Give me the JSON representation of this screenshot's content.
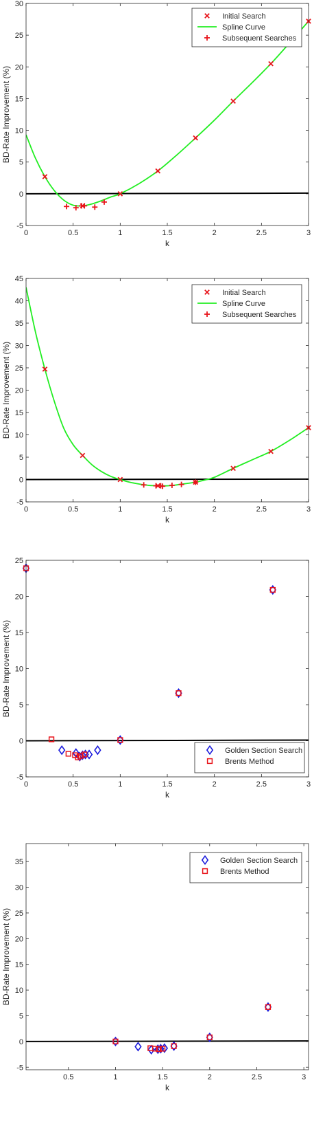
{
  "chart_data": [
    {
      "type": "line",
      "xlabel": "k",
      "ylabel": "BD-Rate Improvement (%)",
      "xlim": [
        0,
        3
      ],
      "ylim": [
        -5,
        30
      ],
      "xticks": [
        0,
        0.5,
        1,
        1.5,
        2,
        2.5,
        3
      ],
      "xtick_labels": [
        "0",
        "0.5",
        "1",
        "1.5",
        "2",
        "2.5",
        "3"
      ],
      "yticks": [
        -5,
        0,
        5,
        10,
        15,
        20,
        25,
        30
      ],
      "ytick_labels": [
        "-5",
        "0",
        "5",
        "10",
        "15",
        "20",
        "25",
        "30"
      ],
      "legend_position": "top-right",
      "legend": [
        "Initial Search",
        "Spline Curve",
        "Subsequent Searches"
      ],
      "zero_line": [
        [
          0,
          0
        ],
        [
          3,
          0.1
        ]
      ],
      "series": [
        {
          "name": "Initial Search",
          "marker": "x",
          "color": "#e8141b",
          "x": [
            0.2,
            0.6,
            1.0,
            1.4,
            1.8,
            2.2,
            2.6,
            3.0
          ],
          "y": [
            2.7,
            -1.9,
            0.0,
            3.6,
            8.8,
            14.6,
            20.5,
            27.2
          ]
        },
        {
          "name": "Spline Curve",
          "style": "line",
          "color": "#22ee22",
          "x": [
            0,
            0.1,
            0.2,
            0.3,
            0.4,
            0.5,
            0.6,
            0.7,
            0.8,
            0.9,
            1.0,
            1.2,
            1.4,
            1.6,
            1.8,
            2.0,
            2.2,
            2.4,
            2.6,
            2.8,
            3.0
          ],
          "y": [
            9.3,
            5.6,
            2.7,
            0.5,
            -1.0,
            -1.8,
            -1.9,
            -1.6,
            -1.1,
            -0.5,
            0.0,
            1.6,
            3.6,
            6.1,
            8.8,
            11.6,
            14.6,
            17.5,
            20.5,
            23.8,
            27.2
          ]
        },
        {
          "name": "Subsequent Searches",
          "marker": "+",
          "color": "#e8141b",
          "x": [
            0.43,
            0.53,
            0.59,
            0.62,
            0.73,
            0.83
          ],
          "y": [
            -2.0,
            -2.2,
            -1.9,
            -1.9,
            -2.1,
            -1.3
          ]
        }
      ]
    },
    {
      "type": "line",
      "xlabel": "k",
      "ylabel": "BD-Rate Improvement (%)",
      "xlim": [
        0,
        3
      ],
      "ylim": [
        -5,
        45
      ],
      "xticks": [
        0,
        0.5,
        1,
        1.5,
        2,
        2.5,
        3
      ],
      "xtick_labels": [
        "0",
        "0.5",
        "1",
        "1.5",
        "2",
        "2.5",
        "3"
      ],
      "yticks": [
        -5,
        0,
        5,
        10,
        15,
        20,
        25,
        30,
        35,
        40,
        45
      ],
      "ytick_labels": [
        "-5",
        "0",
        "5",
        "10",
        "15",
        "20",
        "25",
        "30",
        "35",
        "40",
        "45"
      ],
      "legend_position": "top-right",
      "legend": [
        "Initial Search",
        "Spline Curve",
        "Subsequent Searches"
      ],
      "zero_line": [
        [
          0,
          0
        ],
        [
          3,
          0.1
        ]
      ],
      "series": [
        {
          "name": "Initial Search",
          "marker": "x",
          "color": "#e8141b",
          "x": [
            0.2,
            0.6,
            1.0,
            1.4,
            1.8,
            2.2,
            2.6,
            3.0
          ],
          "y": [
            24.7,
            5.4,
            0.0,
            -1.4,
            -0.6,
            2.5,
            6.3,
            11.6
          ]
        },
        {
          "name": "Spline Curve",
          "style": "line",
          "color": "#22ee22",
          "x": [
            0,
            0.1,
            0.2,
            0.3,
            0.4,
            0.5,
            0.6,
            0.7,
            0.8,
            0.9,
            1.0,
            1.1,
            1.2,
            1.3,
            1.4,
            1.5,
            1.6,
            1.7,
            1.8,
            1.9,
            2.0,
            2.2,
            2.4,
            2.6,
            2.8,
            3.0
          ],
          "y": [
            43.0,
            33.0,
            24.7,
            17.5,
            11.5,
            7.8,
            5.4,
            3.3,
            1.8,
            0.7,
            0.0,
            -0.6,
            -1.0,
            -1.3,
            -1.4,
            -1.4,
            -1.2,
            -0.9,
            -0.6,
            -0.1,
            0.5,
            2.5,
            4.4,
            6.3,
            8.8,
            11.6
          ]
        },
        {
          "name": "Subsequent Searches",
          "marker": "+",
          "color": "#e8141b",
          "x": [
            1.25,
            1.38,
            1.43,
            1.45,
            1.55,
            1.65,
            1.8
          ],
          "y": [
            -1.2,
            -1.4,
            -1.4,
            -1.5,
            -1.3,
            -1.1,
            -0.6
          ]
        }
      ]
    },
    {
      "type": "scatter",
      "xlabel": "k",
      "ylabel": "BD-Rate Improvement (%)",
      "xlim": [
        0,
        3
      ],
      "ylim": [
        -5,
        25
      ],
      "xticks": [
        0,
        0.5,
        1,
        1.5,
        2,
        2.5,
        3
      ],
      "xtick_labels": [
        "0",
        "0.5",
        "1",
        "1.5",
        "2",
        "2.5",
        "3"
      ],
      "yticks": [
        -5,
        0,
        5,
        10,
        15,
        20,
        25
      ],
      "ytick_labels": [
        "-5",
        "0",
        "5",
        "10",
        "15",
        "20",
        "25"
      ],
      "legend_position": "bottom-right",
      "legend": [
        "Golden Section Search",
        "Brents Method"
      ],
      "zero_line": [
        [
          0,
          0
        ],
        [
          3,
          0.1
        ]
      ],
      "series": [
        {
          "name": "Golden Section Search",
          "marker": "diamond",
          "color": "#1a1adc",
          "x": [
            0.0,
            0.38,
            0.53,
            0.57,
            0.6,
            0.63,
            0.67,
            0.76,
            1.0,
            1.62,
            2.62
          ],
          "y": [
            23.9,
            -1.3,
            -1.7,
            -2.2,
            -2.0,
            -1.9,
            -1.9,
            -1.3,
            0.1,
            6.6,
            20.9
          ]
        },
        {
          "name": "Brents Method",
          "marker": "square",
          "color": "#e8141b",
          "x": [
            0.0,
            0.27,
            0.45,
            0.52,
            0.55,
            0.58,
            0.62,
            1.0,
            1.62,
            2.62
          ],
          "y": [
            23.9,
            0.2,
            -1.8,
            -2.0,
            -2.3,
            -2.1,
            -1.9,
            0.1,
            6.6,
            20.9
          ]
        }
      ]
    },
    {
      "type": "scatter",
      "xlabel": "k",
      "ylabel": "BD-Rate Improvement (%)",
      "xlim": [
        0.05,
        3.05
      ],
      "ylim": [
        -5.5,
        38.5
      ],
      "xticks": [
        0.5,
        1,
        1.5,
        2,
        2.5,
        3
      ],
      "xtick_labels": [
        "0.5",
        "1",
        "1.5",
        "2",
        "2.5",
        "3"
      ],
      "yticks": [
        -5,
        0,
        5,
        10,
        15,
        20,
        25,
        30,
        35
      ],
      "ytick_labels": [
        "-5",
        "0",
        "5",
        "10",
        "15",
        "20",
        "25",
        "30",
        "35"
      ],
      "legend_position": "top-right",
      "legend": [
        "Golden Section Search",
        "Brents Method"
      ],
      "zero_line": [
        [
          0.05,
          0
        ],
        [
          3.05,
          0.1
        ]
      ],
      "series": [
        {
          "name": "Golden Section Search",
          "marker": "diamond",
          "color": "#1a1adc",
          "x": [
            1.0,
            1.24,
            1.38,
            1.45,
            1.48,
            1.52,
            1.62,
            2.0,
            2.62
          ],
          "y": [
            0.0,
            -1.0,
            -1.6,
            -1.5,
            -1.4,
            -1.3,
            -0.9,
            0.8,
            6.7
          ]
        },
        {
          "name": "Brents Method",
          "marker": "square",
          "color": "#e8141b",
          "x": [
            1.0,
            1.37,
            1.42,
            1.46,
            1.5,
            1.62,
            2.0,
            2.62
          ],
          "y": [
            0.0,
            -1.3,
            -1.4,
            -1.5,
            -1.4,
            -0.9,
            0.8,
            6.7
          ]
        }
      ]
    }
  ]
}
